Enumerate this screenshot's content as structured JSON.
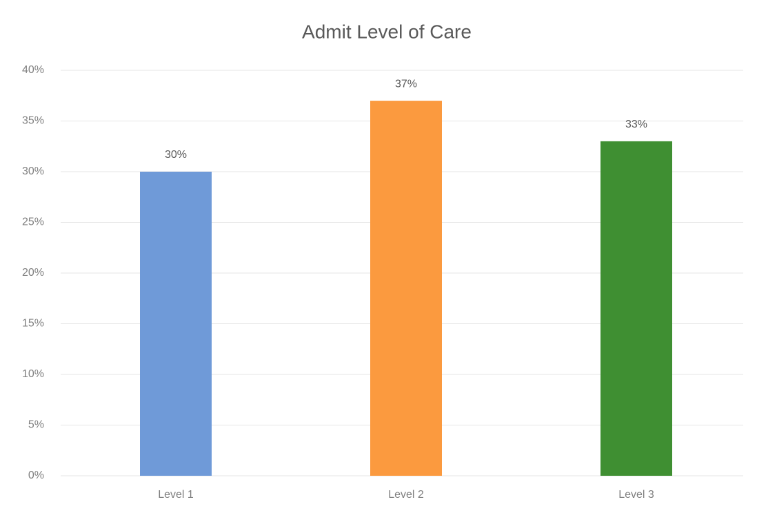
{
  "chart_data": {
    "type": "bar",
    "title": "Admit Level of Care",
    "categories": [
      "Level 1",
      "Level 2",
      "Level 3"
    ],
    "values": [
      30,
      37,
      33
    ],
    "value_labels": [
      "30%",
      "37%",
      "33%"
    ],
    "colors": [
      "#6f9ad8",
      "#fb9a3f",
      "#3f8f32"
    ],
    "ylim": [
      0,
      40
    ],
    "yticks": [
      {
        "value": 0,
        "label": "0%"
      },
      {
        "value": 5,
        "label": "5%"
      },
      {
        "value": 10,
        "label": "10%"
      },
      {
        "value": 15,
        "label": "15%"
      },
      {
        "value": 20,
        "label": "20%"
      },
      {
        "value": 25,
        "label": "25%"
      },
      {
        "value": 30,
        "label": "30%"
      },
      {
        "value": 35,
        "label": "35%"
      },
      {
        "value": 40,
        "label": "40%"
      }
    ],
    "grid": true
  }
}
